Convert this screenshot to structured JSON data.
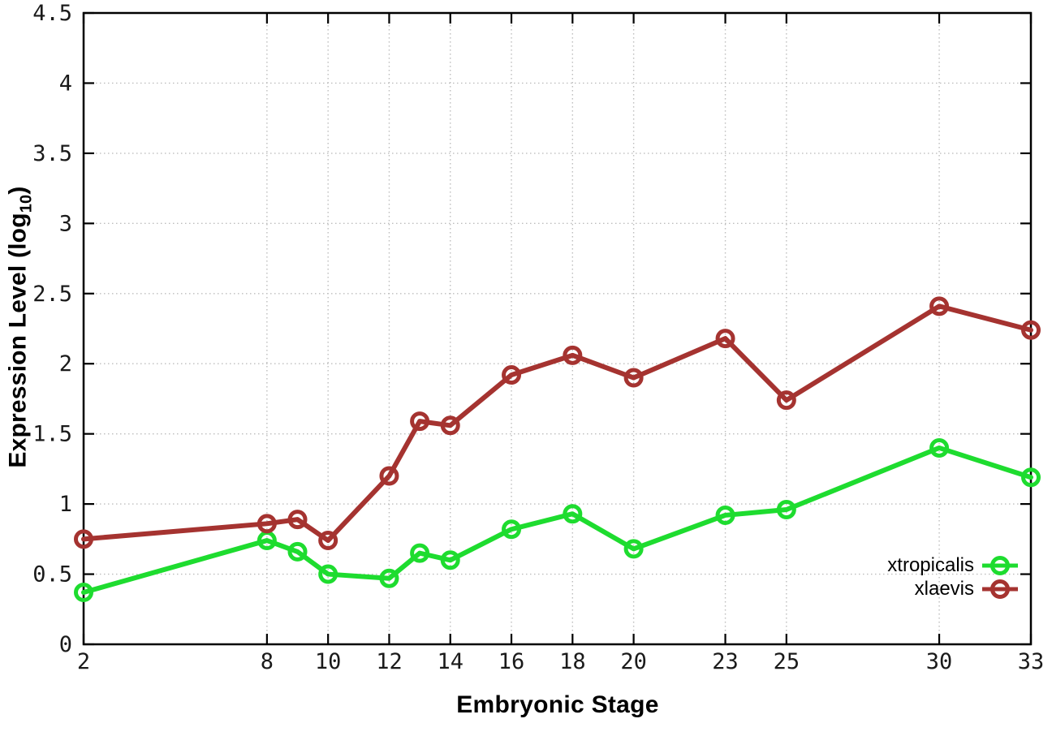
{
  "chart_data": {
    "type": "line",
    "title": "",
    "xlabel": "Embryonic Stage",
    "ylabel_prefix": "Expression Level (log",
    "ylabel_subscript": "10",
    "ylabel_suffix": ")",
    "xlim": [
      2,
      33
    ],
    "ylim": [
      0,
      4.5
    ],
    "grid": true,
    "legend_position": "bottom-right",
    "background_color": "#ffffff",
    "axis_color": "#000000",
    "grid_color": "#bdbdbd",
    "tick_label_color": "#1a1a1a",
    "x": [
      2,
      8,
      9,
      10,
      12,
      13,
      14,
      16,
      18,
      20,
      23,
      25,
      30,
      33
    ],
    "x_tick_values": [
      2,
      8,
      10,
      12,
      14,
      16,
      18,
      20,
      23,
      25,
      30,
      33
    ],
    "x_tick_labels": [
      "2",
      "8",
      "10",
      "12",
      "14",
      "16",
      "18",
      "20",
      "23",
      "25",
      "30",
      "33"
    ],
    "y_tick_values": [
      0,
      0.5,
      1,
      1.5,
      2,
      2.5,
      3,
      3.5,
      4,
      4.5
    ],
    "y_tick_labels": [
      "0",
      "0.5",
      "1",
      "1.5",
      "2",
      "2.5",
      "3",
      "3.5",
      "4",
      "4.5"
    ],
    "series": [
      {
        "name": "xtropicalis",
        "color": "#1edc2f",
        "values": [
          0.37,
          0.74,
          0.66,
          0.5,
          0.47,
          0.65,
          0.6,
          0.82,
          0.93,
          0.68,
          0.92,
          0.96,
          1.4,
          1.19
        ]
      },
      {
        "name": "xlaevis",
        "color": "#a53330",
        "values": [
          0.75,
          0.86,
          0.89,
          0.74,
          1.2,
          1.59,
          1.56,
          1.92,
          2.06,
          1.9,
          2.18,
          1.74,
          2.41,
          2.24
        ]
      }
    ]
  }
}
